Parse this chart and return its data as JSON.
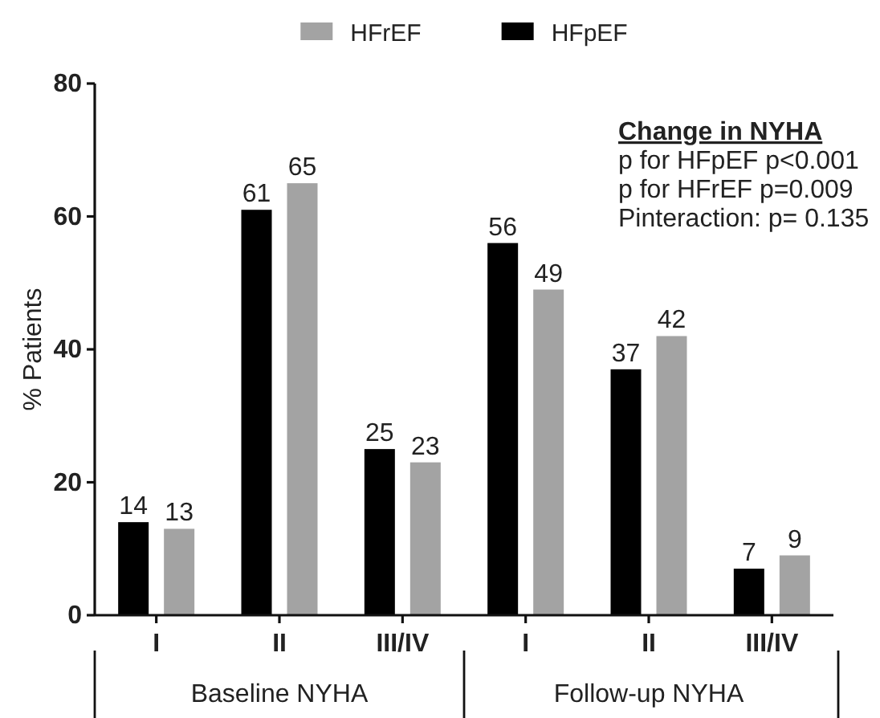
{
  "chart_data": {
    "type": "bar",
    "categories": [
      "I",
      "II",
      "III/IV",
      "I",
      "II",
      "III/IV"
    ],
    "series": [
      {
        "name": "HFpEF",
        "color": "#000000",
        "values": [
          14,
          61,
          25,
          56,
          37,
          7
        ]
      },
      {
        "name": "HFrEF",
        "color": "#a3a3a3",
        "values": [
          13,
          65,
          23,
          49,
          42,
          9
        ]
      }
    ],
    "ylabel": "% Patients",
    "ylim": [
      0,
      80
    ],
    "yticks": [
      0,
      20,
      40,
      60,
      80
    ],
    "data_labels": true,
    "legend": "top",
    "annotations": [
      "Baseline NYHA",
      "Follow-up NYHA",
      "Change in NYHA",
      "p for HFpEF p<0.001",
      "p for HFrEF p=0.009",
      "Pinteraction: p= 0.135"
    ]
  }
}
